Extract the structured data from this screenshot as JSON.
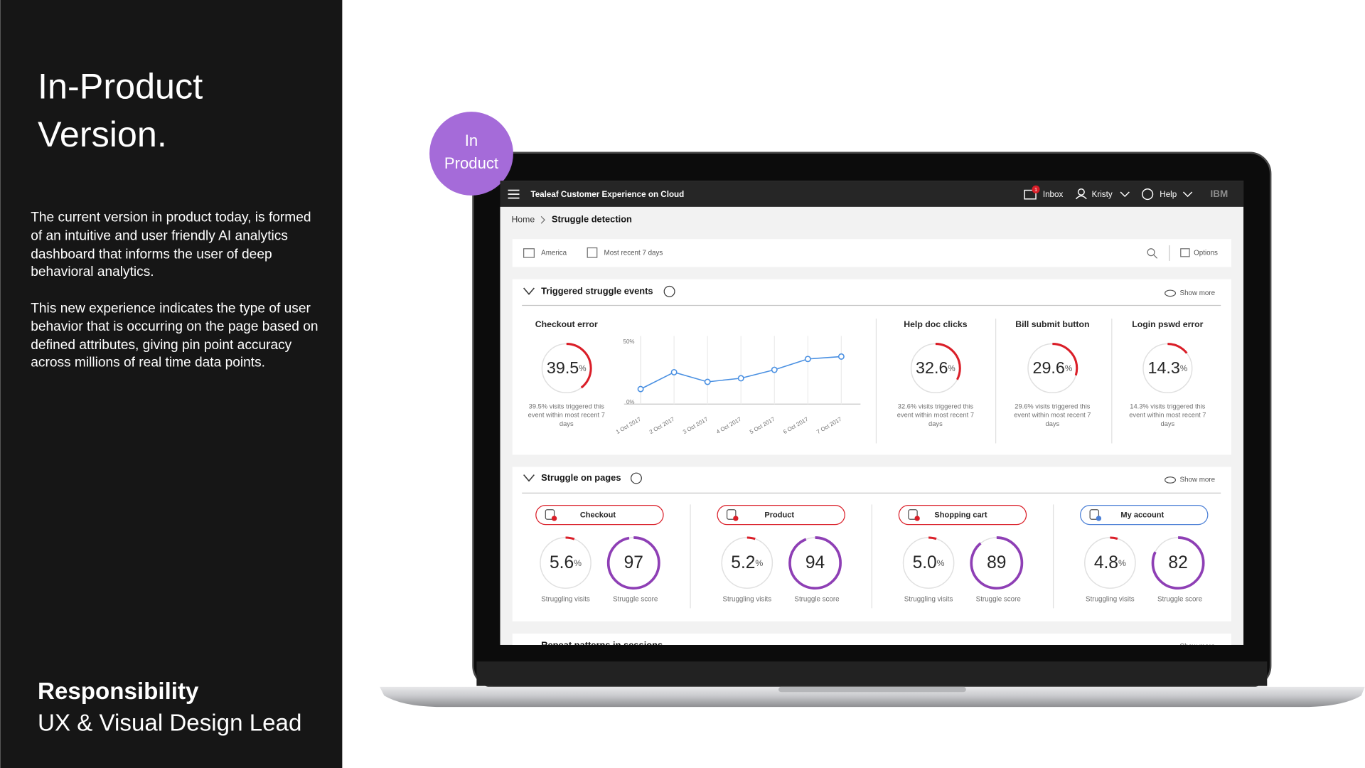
{
  "slide": {
    "title": "In-Product Version.",
    "description": [
      "The current version in product today, is formed of an intuitive and user friendly AI analytics dashboard that informs the user of deep behavioral analytics.",
      "This new experience indicates the type of user behavior that is occurring on the page based on defined attributes, giving pin point accuracy across millions of real time data points."
    ],
    "responsibility": {
      "heading": "Responsibility",
      "role": "UX & Visual Design Lead"
    },
    "badge": "In Product"
  },
  "app": {
    "product_name": "Tealeaf Customer Experience on Cloud",
    "nav": {
      "inbox": "Inbox",
      "inbox_count": 1,
      "user": "Kristy",
      "help": "Help",
      "brand": "IBM"
    },
    "breadcrumb": {
      "home": "Home",
      "current": "Struggle detection"
    },
    "filters": {
      "region": "America",
      "period": "Most recent 7 days",
      "options": "Options"
    },
    "triggered": {
      "title": "Triggered struggle events",
      "show_more": "Show more",
      "events": [
        {
          "name": "Checkout error",
          "value": 39.5,
          "unit": "%",
          "caption": "39.5% visits triggered this event within most recent 7 days"
        },
        {
          "name": "Help doc clicks",
          "value": 32.6,
          "unit": "%",
          "caption": "32.6% visits triggered this event within most recent 7 days"
        },
        {
          "name": "Bill submit button",
          "value": 29.6,
          "unit": "%",
          "caption": "29.6% visits triggered this event within most recent 7 days"
        },
        {
          "name": "Login pswd error",
          "value": 14.3,
          "unit": "%",
          "caption": "14.3% visits triggered this event within most recent 7 days"
        }
      ],
      "trend": {
        "type": "line",
        "x": [
          "1 Oct 2017",
          "2 Oct 2017",
          "3 Oct 2017",
          "4 Oct 2017",
          "5 Oct 2017",
          "6 Oct 2017",
          "7 Oct 2017"
        ],
        "values": [
          11,
          25,
          17,
          20,
          27,
          36,
          38
        ],
        "ylim": [
          0,
          50
        ],
        "yticks": [
          {
            "value": 0,
            "label": "0%"
          },
          {
            "value": 50,
            "label": "50%"
          }
        ],
        "grid": true,
        "color": "#4a90e2"
      }
    },
    "pages": {
      "title": "Struggle on pages",
      "show_more": "Show more",
      "items": [
        {
          "name": "Checkout",
          "visits": 5.6,
          "unit": "%",
          "visits_caption": "Struggling visits",
          "score": 97,
          "score_caption": "Struggle score",
          "pill_color": "#da1e28"
        },
        {
          "name": "Product",
          "visits": 5.2,
          "unit": "%",
          "visits_caption": "Struggling visits",
          "score": 94,
          "score_caption": "Struggle score",
          "pill_color": "#da1e28"
        },
        {
          "name": "Shopping cart",
          "visits": 5.0,
          "value_label": "5.0",
          "unit": "%",
          "visits_caption": "Struggling visits",
          "score": 89,
          "score_caption": "Struggle score",
          "pill_color": "#da1e28"
        },
        {
          "name": "My account",
          "visits": 4.8,
          "unit": "%",
          "visits_caption": "Struggling visits",
          "score": 82,
          "score_caption": "Struggle score",
          "pill_color": "#4a7fd6"
        }
      ]
    },
    "next_section": {
      "title": "Repeat patterns in sessions",
      "show_more": "Show more"
    }
  }
}
